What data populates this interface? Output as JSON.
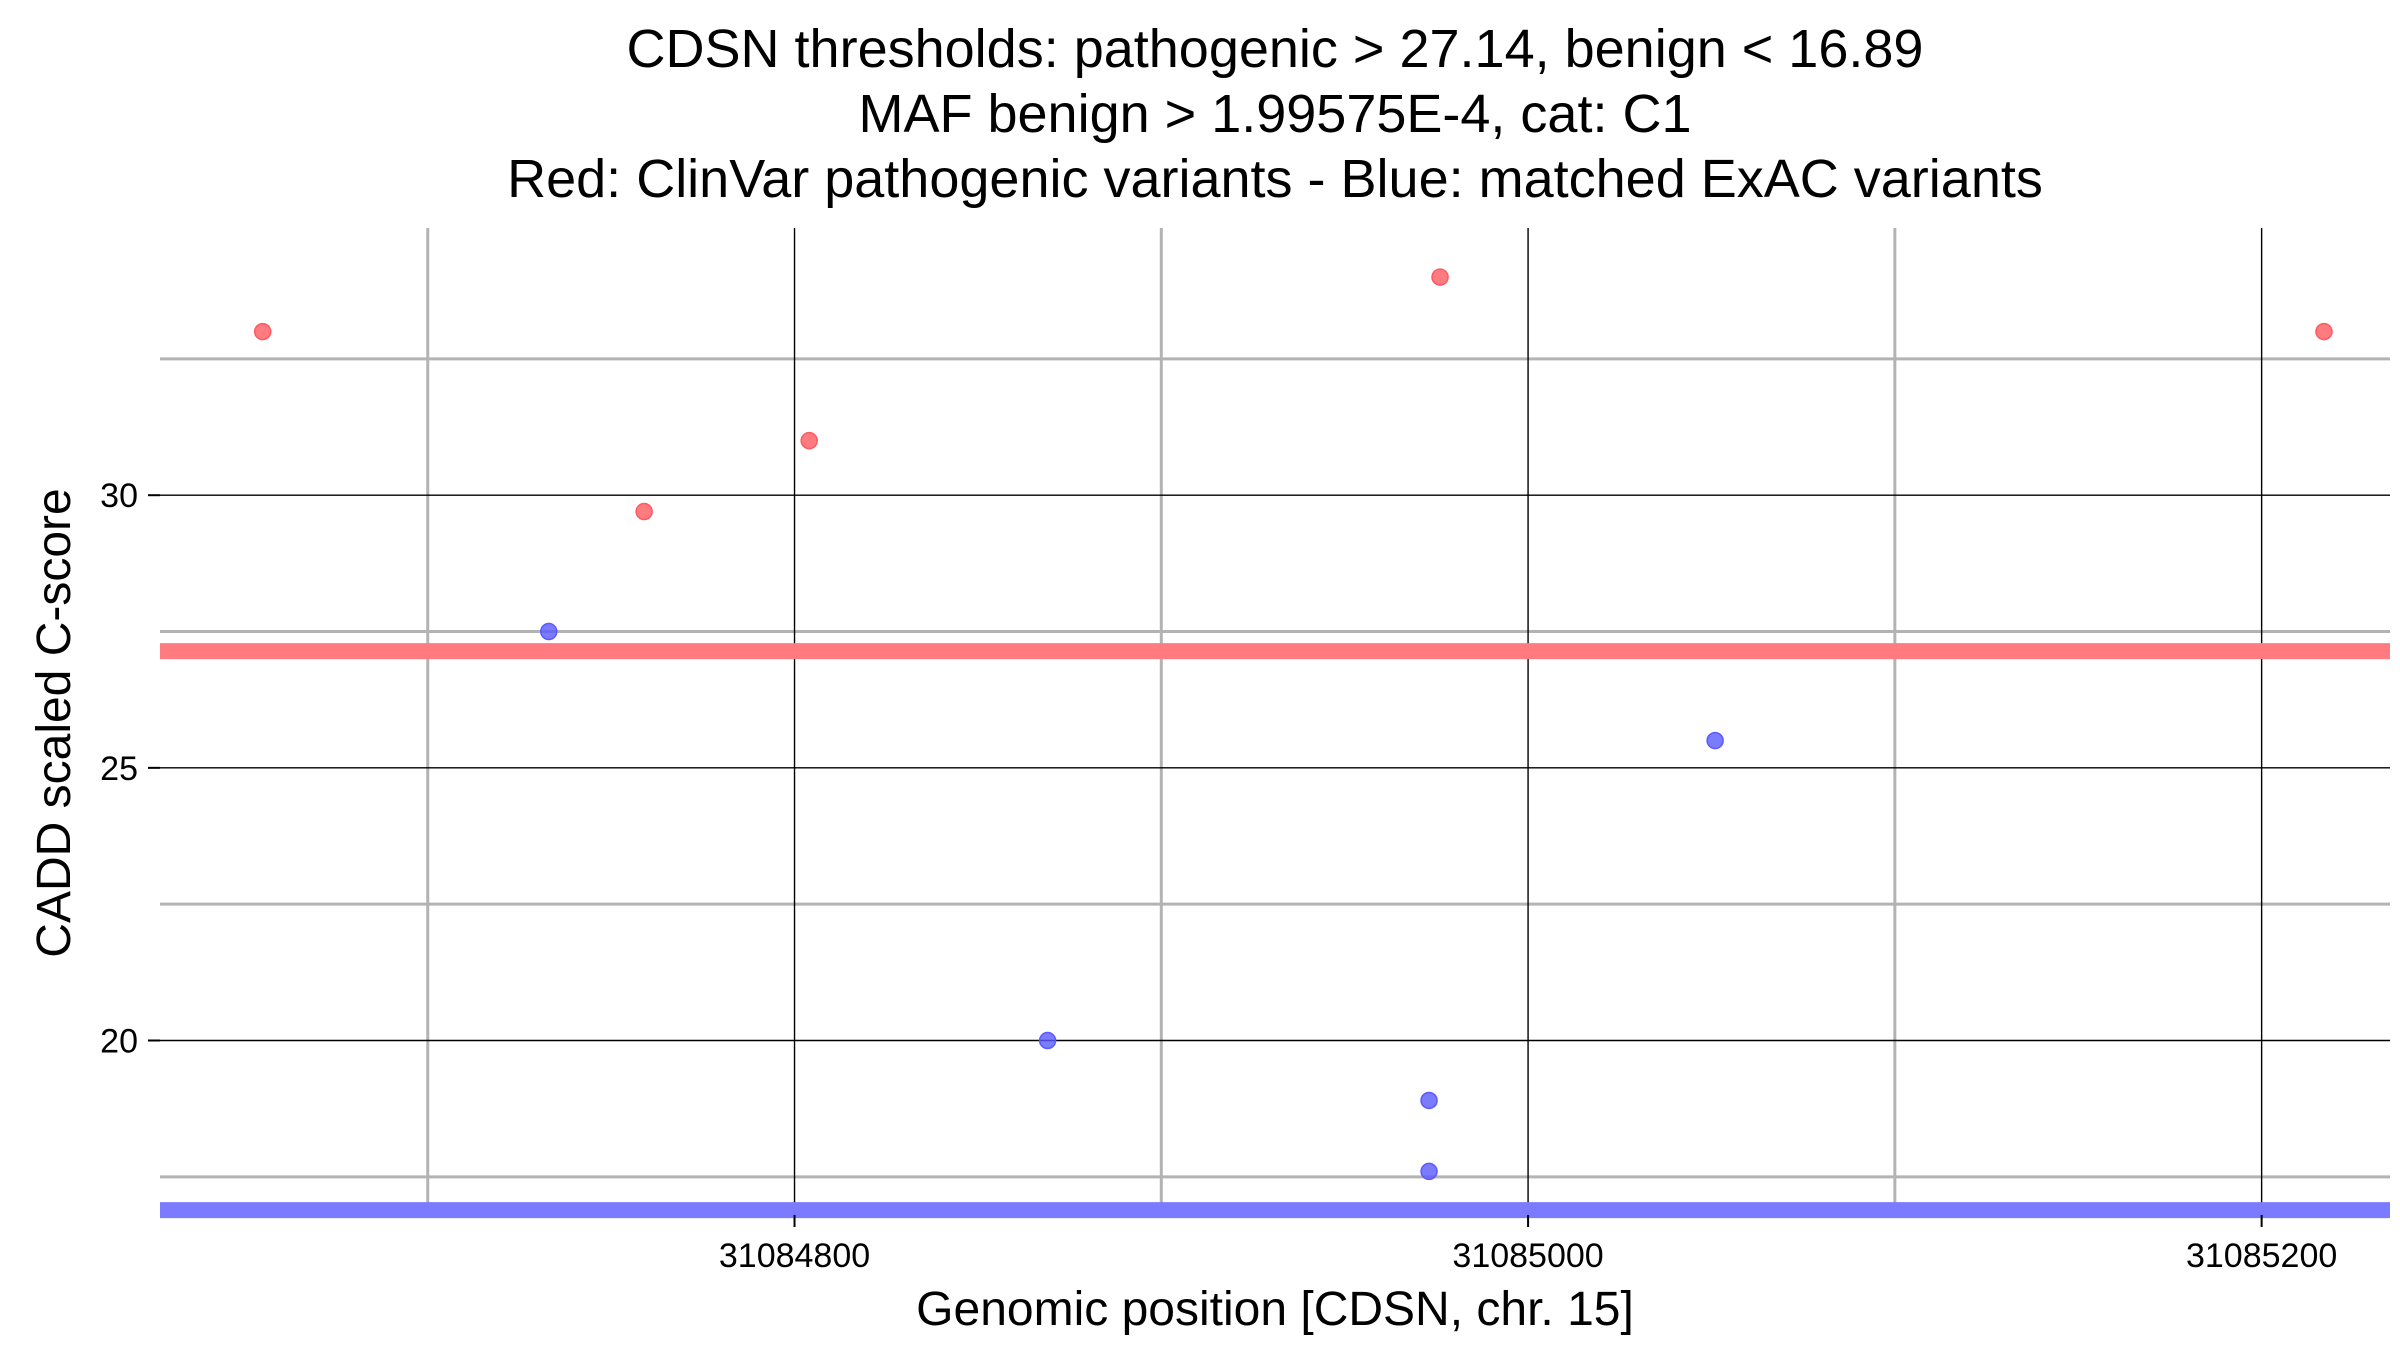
{
  "chart_data": {
    "type": "scatter",
    "title_lines": [
      "CDSN thresholds: pathogenic > 27.14, benign < 16.89",
      "MAF benign > 1.99575E-4, cat: C1",
      "Red: ClinVar pathogenic variants - Blue: matched ExAC variants"
    ],
    "xlabel": "Genomic position [CDSN, chr. 15]",
    "ylabel": "CADD scaled C-score",
    "xlim": [
      31084627,
      31085235
    ],
    "ylim": [
      16.8,
      34.9
    ],
    "x_ticks": [
      31084800,
      31085000,
      31085200
    ],
    "x_tick_labels": [
      "31084800",
      "31085000",
      "31085200"
    ],
    "x_minor_grid": [
      31084700,
      31084900,
      31085100
    ],
    "y_ticks": [
      20,
      25,
      30
    ],
    "y_tick_labels": [
      "20",
      "25",
      "30"
    ],
    "y_minor_grid": [
      17.5,
      22.5,
      27.5,
      32.5
    ],
    "thresholds": [
      {
        "name": "pathogenic",
        "value": 27.14,
        "color": "#ff7b7f"
      },
      {
        "name": "benign",
        "value": 16.89,
        "color": "#7b7bff"
      }
    ],
    "series": [
      {
        "name": "ClinVar pathogenic variants",
        "color": "#ff5a5f",
        "points": [
          {
            "x": 31084655,
            "y": 33.0
          },
          {
            "x": 31084759,
            "y": 29.7
          },
          {
            "x": 31084804,
            "y": 31.0
          },
          {
            "x": 31084976,
            "y": 34.0
          },
          {
            "x": 31085217,
            "y": 33.0
          }
        ]
      },
      {
        "name": "matched ExAC variants",
        "color": "#5a5aff",
        "points": [
          {
            "x": 31084733,
            "y": 27.5
          },
          {
            "x": 31084869,
            "y": 20.0
          },
          {
            "x": 31084973,
            "y": 18.9
          },
          {
            "x": 31084973,
            "y": 17.6
          },
          {
            "x": 31085051,
            "y": 25.5
          }
        ]
      }
    ]
  }
}
